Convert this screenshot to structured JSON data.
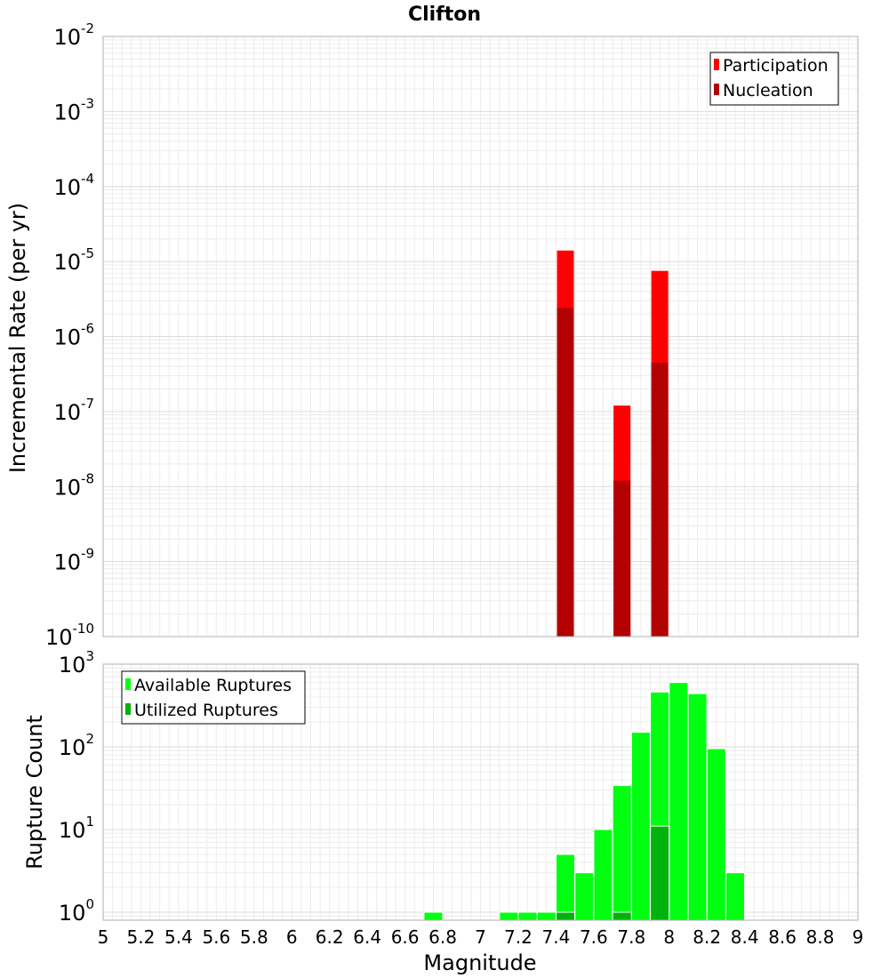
{
  "chart_data": [
    {
      "type": "bar",
      "title": "Clifton",
      "xlabel": "",
      "ylabel": "Incremental Rate (per yr)",
      "yscale": "log",
      "ylim": [
        1e-10,
        0.01
      ],
      "xlim": [
        5,
        9
      ],
      "y_tick_exponents": [
        "-10",
        "-9",
        "-8",
        "-7",
        "-6",
        "-5",
        "-4",
        "-3",
        "-2"
      ],
      "legend_position": "top-right",
      "series": [
        {
          "name": "Participation",
          "color": "#ff0000",
          "points": [
            {
              "x": 7.45,
              "y": 1.4e-05
            },
            {
              "x": 7.75,
              "y": 1.2e-07
            },
            {
              "x": 7.95,
              "y": 7.5e-06
            }
          ]
        },
        {
          "name": "Nucleation",
          "color": "#b30000",
          "points": [
            {
              "x": 7.45,
              "y": 2.4e-06
            },
            {
              "x": 7.75,
              "y": 1.2e-08
            },
            {
              "x": 7.95,
              "y": 4.5e-07
            }
          ]
        }
      ]
    },
    {
      "type": "bar",
      "xlabel": "Magnitude",
      "ylabel": "Rupture Count",
      "yscale": "log",
      "ylim": [
        0.8,
        1000
      ],
      "xlim": [
        5,
        9
      ],
      "y_tick_exponents": [
        "0",
        "1",
        "2",
        "3"
      ],
      "x_tick_labels": [
        "5",
        "5.2",
        "5.4",
        "5.6",
        "5.8",
        "6",
        "6.2",
        "6.4",
        "6.6",
        "6.8",
        "7",
        "7.2",
        "7.4",
        "7.6",
        "7.8",
        "8",
        "8.2",
        "8.4",
        "8.6",
        "8.8",
        "9"
      ],
      "legend_position": "top-left",
      "series": [
        {
          "name": "Available Ruptures",
          "color": "#00ff11",
          "points": [
            {
              "x": 6.75,
              "y": 1
            },
            {
              "x": 7.15,
              "y": 1
            },
            {
              "x": 7.25,
              "y": 1
            },
            {
              "x": 7.35,
              "y": 1
            },
            {
              "x": 7.45,
              "y": 5
            },
            {
              "x": 7.55,
              "y": 3
            },
            {
              "x": 7.65,
              "y": 10
            },
            {
              "x": 7.75,
              "y": 34
            },
            {
              "x": 7.85,
              "y": 150
            },
            {
              "x": 7.95,
              "y": 460
            },
            {
              "x": 8.05,
              "y": 600
            },
            {
              "x": 8.15,
              "y": 440
            },
            {
              "x": 8.25,
              "y": 95
            },
            {
              "x": 8.35,
              "y": 3
            }
          ]
        },
        {
          "name": "Utilized Ruptures",
          "color": "#00b30c",
          "points": [
            {
              "x": 7.45,
              "y": 1
            },
            {
              "x": 7.75,
              "y": 1
            },
            {
              "x": 7.95,
              "y": 11
            }
          ]
        }
      ]
    }
  ]
}
